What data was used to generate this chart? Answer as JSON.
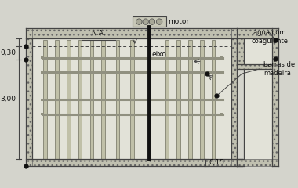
{
  "bg_color": "#d4d4cc",
  "wall_color": "#444444",
  "text_color": "#111111",
  "annotations": {
    "NA": "N.A.",
    "motor": "motor",
    "eixo": "eixo",
    "agua": "água com\ncoagulante",
    "barras": "barras de\nmadeira",
    "dim030": "0,30",
    "dim300": "3,00",
    "dim015": "0,15"
  },
  "figsize": [
    3.8,
    2.4
  ],
  "dpi": 100
}
